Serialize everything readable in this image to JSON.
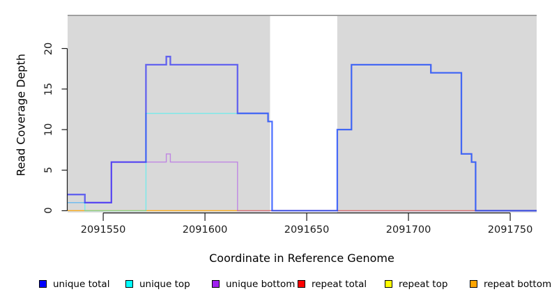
{
  "chart_data": {
    "type": "line",
    "step": true,
    "title": "",
    "xlabel": "Coordinate in Reference Genome",
    "ylabel": "Read Coverage Depth",
    "xlim": [
      2091532.5,
      2091763
    ],
    "ylim": [
      -0.22,
      24
    ],
    "x_ticks": [
      2091550,
      2091600,
      2091650,
      2091700,
      2091750
    ],
    "y_ticks": [
      0,
      5,
      10,
      15,
      20
    ],
    "grid": false,
    "legend_position": "bottom",
    "plot_bg": "#D9D9D9",
    "axis_color": "#1A1A1A",
    "top_border_color": "#8E8E8E",
    "masked_region": {
      "x0": 2091632,
      "x1": 2091665,
      "color": "#FFFFFF"
    },
    "series": [
      {
        "name": "unique total",
        "color": "#0000FF",
        "opacity": 0.55,
        "width": 2.3,
        "points": [
          [
            2091532.5,
            2
          ],
          [
            2091541,
            1
          ],
          [
            2091554,
            6
          ],
          [
            2091571,
            18
          ],
          [
            2091581,
            19
          ],
          [
            2091583,
            18
          ],
          [
            2091616,
            12
          ],
          [
            2091631,
            11
          ],
          [
            2091633,
            0
          ],
          [
            2091665,
            10
          ],
          [
            2091672,
            18
          ],
          [
            2091711,
            17
          ],
          [
            2091726,
            7
          ],
          [
            2091731,
            6
          ],
          [
            2091733,
            0
          ],
          [
            2091763,
            0
          ]
        ]
      },
      {
        "name": "unique top",
        "color": "#00FFFF",
        "opacity": 0.45,
        "width": 1.4,
        "points": [
          [
            2091532.5,
            1
          ],
          [
            2091541,
            0
          ],
          [
            2091571,
            12
          ],
          [
            2091631,
            11
          ],
          [
            2091633,
            0
          ],
          [
            2091665,
            10
          ],
          [
            2091672,
            18
          ],
          [
            2091711,
            17
          ],
          [
            2091726,
            7
          ],
          [
            2091731,
            6
          ],
          [
            2091733,
            0
          ],
          [
            2091763,
            0
          ]
        ]
      },
      {
        "name": "unique bottom",
        "color": "#A020F0",
        "opacity": 0.45,
        "width": 1.4,
        "points": [
          [
            2091532.5,
            1
          ],
          [
            2091554,
            6
          ],
          [
            2091581,
            7
          ],
          [
            2091583,
            6
          ],
          [
            2091616,
            0
          ],
          [
            2091763,
            0
          ]
        ]
      },
      {
        "name": "repeat total",
        "color": "#FF0000",
        "opacity": 0.5,
        "width": 1.2,
        "points": [
          [
            2091532.5,
            0
          ],
          [
            2091763,
            0
          ]
        ]
      },
      {
        "name": "repeat top",
        "color": "#FFFF00",
        "opacity": 0.5,
        "width": 1.2,
        "points": [
          [
            2091532.5,
            0
          ],
          [
            2091763,
            0
          ]
        ]
      },
      {
        "name": "repeat bottom",
        "color": "#FFA500",
        "opacity": 0.5,
        "width": 1.2,
        "points": [
          [
            2091532.5,
            0
          ],
          [
            2091763,
            0
          ]
        ]
      }
    ]
  }
}
